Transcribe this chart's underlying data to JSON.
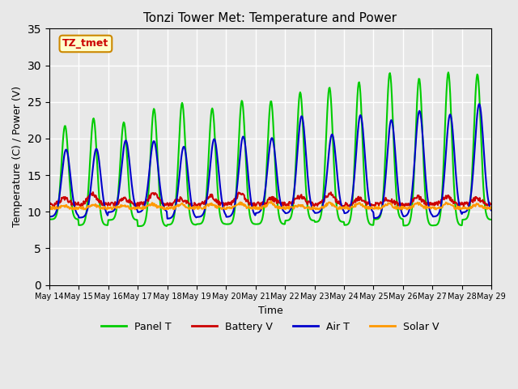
{
  "title": "Tonzi Tower Met: Temperature and Power",
  "xlabel": "Time",
  "ylabel": "Temperature (C) / Power (V)",
  "ylim": [
    0,
    35
  ],
  "yticks": [
    0,
    5,
    10,
    15,
    20,
    25,
    30,
    35
  ],
  "x_labels": [
    "May 14",
    "May 15",
    "May 16",
    "May 17",
    "May 18",
    "May 19",
    "May 20",
    "May 21",
    "May 22",
    "May 23",
    "May 24",
    "May 25",
    "May 26",
    "May 27",
    "May 28",
    "May 29"
  ],
  "annotation_text": "TZ_tmet",
  "annotation_box_facecolor": "#ffffcc",
  "annotation_box_edgecolor": "#cc8800",
  "annotation_text_color": "#cc0000",
  "bg_color": "#e8e8e8",
  "grid_color": "white",
  "series": {
    "panel_t": {
      "label": "Panel T",
      "color": "#00cc00",
      "linewidth": 1.5
    },
    "battery_v": {
      "label": "Battery V",
      "color": "#cc0000",
      "linewidth": 1.5
    },
    "air_t": {
      "label": "Air T",
      "color": "#0000cc",
      "linewidth": 1.5
    },
    "solar_v": {
      "label": "Solar V",
      "color": "#ff9900",
      "linewidth": 1.5
    }
  },
  "n_days": 15,
  "day_start": 14
}
